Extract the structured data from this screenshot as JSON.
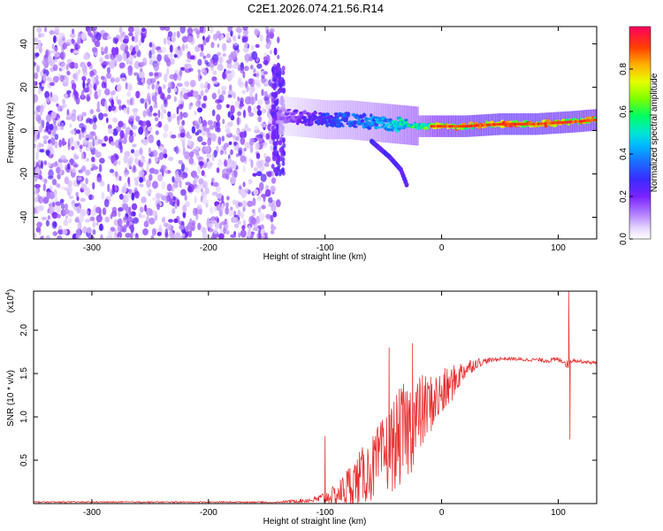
{
  "title": "C2E1.2026.074.21.56.R14",
  "chart_data": [
    {
      "type": "heatmap",
      "name": "spectrogram",
      "title": "C2E1.2026.074.21.56.R14",
      "xlabel": "Height of straight line (km)",
      "ylabel": "Frequency (Hz)",
      "xlim": [
        -350,
        133
      ],
      "ylim": [
        -50,
        48
      ],
      "x_ticks": [
        -300,
        -200,
        -100,
        0,
        100
      ],
      "y_ticks": [
        -40,
        -20,
        0,
        20,
        40
      ],
      "noise_region_km": [
        -350,
        -140
      ],
      "trace": {
        "description_points_km": [
          -140,
          -120,
          -100,
          -80,
          -60,
          -40,
          -20,
          0,
          20,
          50,
          80,
          110,
          133
        ],
        "frequency_hz": [
          7,
          6,
          5,
          5,
          4,
          3,
          2,
          2,
          2,
          3,
          3,
          4,
          5
        ],
        "amplitude": [
          0.15,
          0.25,
          0.35,
          0.4,
          0.45,
          0.55,
          0.65,
          0.85,
          0.9,
          0.95,
          0.95,
          0.9,
          0.9
        ]
      },
      "branch": {
        "x_km": [
          -60,
          -45,
          -35,
          -30
        ],
        "frequency_hz": [
          -5,
          -12,
          -18,
          -25
        ]
      },
      "colorbar": {
        "label": "Normalized spectral amplitude",
        "range": [
          0,
          1
        ],
        "ticks": [
          "0.0",
          "0.2",
          "0.4",
          "0.6",
          "0.8"
        ],
        "tick_values": [
          0,
          0.2,
          0.4,
          0.6,
          0.8
        ]
      }
    },
    {
      "type": "line",
      "name": "snr",
      "xlabel": "Height of straight line (km)",
      "ylabel": "SNR (10 * v/v)",
      "multiplier": "(x10",
      "multiplier_exp": "4",
      "multiplier_close": ")",
      "xlim": [
        -350,
        133
      ],
      "ylim": [
        0,
        2.45
      ],
      "x_ticks": [
        -300,
        -200,
        -100,
        0,
        100
      ],
      "y_ticks": [
        "0.5",
        "1.0",
        "1.5",
        "2.0"
      ],
      "y_tick_values": [
        0.5,
        1.0,
        1.5,
        2.0
      ],
      "color": "#e83030",
      "envelope_x": [
        -350,
        -150,
        -110,
        -90,
        -80,
        -70,
        -60,
        -50,
        -40,
        -30,
        -20,
        -10,
        0,
        10,
        20,
        30,
        40,
        50,
        60,
        70,
        80,
        90,
        100,
        105,
        108,
        110,
        112,
        115,
        120,
        133
      ],
      "envelope_y": [
        0.01,
        0.01,
        0.04,
        0.1,
        0.2,
        0.3,
        0.4,
        0.55,
        0.7,
        0.85,
        1.0,
        1.15,
        1.25,
        1.4,
        1.55,
        1.62,
        1.65,
        1.67,
        1.67,
        1.66,
        1.66,
        1.65,
        1.66,
        1.64,
        1.6,
        1.64,
        1.66,
        1.65,
        1.64,
        1.62
      ],
      "noise_amplitude": [
        0,
        0,
        0.03,
        0.12,
        0.25,
        0.32,
        0.38,
        0.45,
        0.55,
        0.6,
        0.5,
        0.35,
        0.3,
        0.2,
        0.12,
        0.06,
        0.03,
        0.02,
        0.02,
        0.02,
        0.02,
        0.03,
        0.03,
        0.03,
        0.05,
        0.06,
        0.03,
        0.02,
        0.02,
        0.02
      ],
      "features": [
        {
          "x": -45,
          "y": 1.8
        },
        {
          "x": -25,
          "y": 1.85
        },
        {
          "x": -100,
          "y": 0.78
        },
        {
          "x": 109,
          "y": 2.45
        },
        {
          "x": 110,
          "y": 0.74
        }
      ]
    }
  ]
}
